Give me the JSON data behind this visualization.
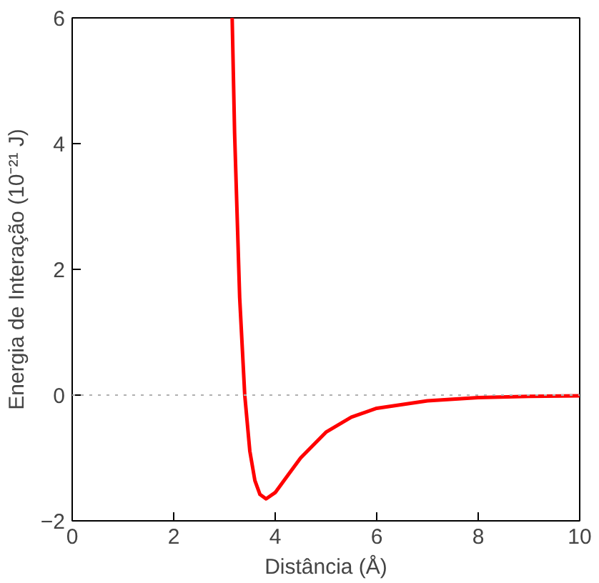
{
  "chart_data": {
    "type": "line",
    "xlabel": "Distância (Å)",
    "ylabel": "Energia de Interação (10⁻²¹ J)",
    "x": [
      3.152,
      3.2,
      3.3,
      3.4,
      3.5,
      3.6,
      3.7,
      3.82,
      4.0,
      4.2,
      4.5,
      5.0,
      5.5,
      6.0,
      7.0,
      8.0,
      9.0,
      10.0
    ],
    "series": [
      {
        "color": "#ff0000",
        "values": [
          6.0,
          4.17,
          1.55,
          0.0,
          -0.89,
          -1.36,
          -1.58,
          -1.65,
          -1.55,
          -1.33,
          -1.0,
          -0.59,
          -0.35,
          -0.21,
          -0.09,
          -0.04,
          -0.02,
          -0.01
        ]
      }
    ],
    "xlim": [
      0,
      10
    ],
    "ylim": [
      -2,
      6
    ],
    "xticks": [
      0,
      2,
      4,
      6,
      8,
      10
    ],
    "yticks": [
      {
        "value": -2,
        "label": "−2"
      },
      0,
      2,
      4,
      6
    ],
    "ref_lines": [
      {
        "axis": "y",
        "value": 0,
        "color": "#b0b0b0",
        "line_style": "dotted"
      }
    ],
    "marker": "none",
    "line_style": "solid"
  }
}
